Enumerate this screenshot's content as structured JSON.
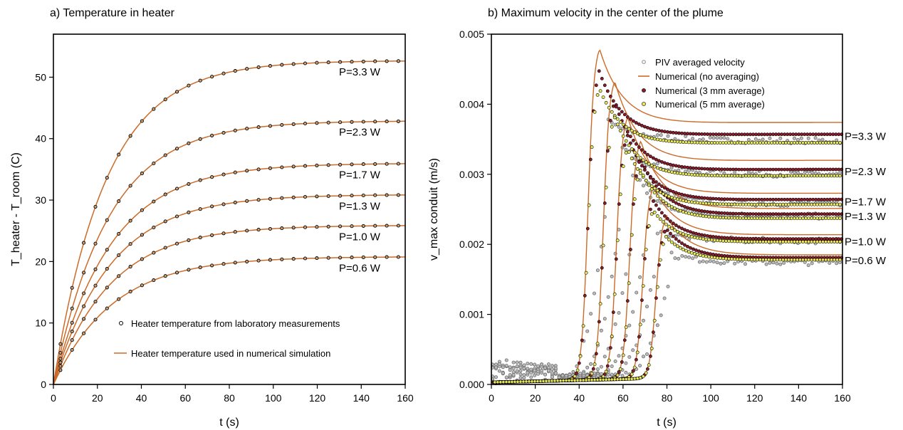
{
  "chart_data": [
    {
      "type": "line",
      "title": "a) Temperature in heater",
      "xlabel": "t (s)",
      "ylabel": "T_heater - T_room (C)",
      "xlim": [
        0,
        160
      ],
      "ylim": [
        0,
        57
      ],
      "x_ticks": [
        "0",
        "20",
        "40",
        "60",
        "80",
        "100",
        "120",
        "140",
        "160"
      ],
      "y_ticks": [
        "0",
        "10",
        "20",
        "30",
        "40",
        "50"
      ],
      "legend": {
        "placement": "bottom-right",
        "entries": [
          {
            "label": "Heater temperature from laboratory measurements",
            "marker": "open-circle"
          },
          {
            "label": "Heater temperature used in numerical simulation",
            "marker": "line",
            "color": "#cc6a28"
          }
        ]
      },
      "series": [
        {
          "label": "P=3.3 W",
          "asymptote": 52.7,
          "tau": 24,
          "curve_color": "#cc6a28"
        },
        {
          "label": "P=2.3 W",
          "asymptote": 42.9,
          "tau": 25,
          "curve_color": "#cc6a28"
        },
        {
          "label": "P=1.7 W",
          "asymptote": 36.0,
          "tau": 26,
          "curve_color": "#cc6a28"
        },
        {
          "label": "P=1.3 W",
          "asymptote": 30.9,
          "tau": 26,
          "curve_color": "#cc6a28"
        },
        {
          "label": "P=1.0 W",
          "asymptote": 25.9,
          "tau": 26,
          "curve_color": "#cc6a28"
        },
        {
          "label": "P=0.6 W",
          "asymptote": 20.8,
          "tau": 27,
          "curve_color": "#cc6a28"
        }
      ],
      "grid": false
    },
    {
      "type": "scatter",
      "title": "b) Maximum velocity in the center of the plume",
      "xlabel": "t (s)",
      "ylabel": "v_max conduit (m/s)",
      "xlim": [
        0,
        160
      ],
      "ylim": [
        0,
        0.005
      ],
      "x_ticks": [
        "0",
        "20",
        "40",
        "60",
        "80",
        "100",
        "120",
        "140",
        "160"
      ],
      "y_ticks": [
        "0.000",
        "0.001",
        "0.002",
        "0.003",
        "0.004",
        "0.005"
      ],
      "legend": {
        "placement": "top-right",
        "entries": [
          {
            "label": "PIV averaged velocity",
            "marker": "open-circle",
            "color": "#8a8a8a"
          },
          {
            "label": "Numerical (no averaging)",
            "marker": "line",
            "color": "#cc6a28"
          },
          {
            "label": "Numerical (3 mm average)",
            "marker": "filled-circle",
            "color": "#8b1a2b"
          },
          {
            "label": "Numerical (5 mm average)",
            "marker": "filled-circle",
            "color": "#e8e85a"
          }
        ]
      },
      "series": [
        {
          "label": "P=3.3 W",
          "onset": 47,
          "peak_t": 49,
          "peak": 0.00482,
          "settle": 0.00376,
          "avg3": 0.00359,
          "avg5": 0.00347,
          "piv": 0.00348
        },
        {
          "label": "P=2.3 W",
          "onset": 53,
          "peak_t": 56,
          "peak": 0.00435,
          "settle": 0.00322,
          "avg3": 0.00309,
          "avg5": 0.003,
          "piv": 0.003
        },
        {
          "label": "P=1.7 W",
          "onset": 58,
          "peak_t": 62,
          "peak": 0.00383,
          "settle": 0.00275,
          "avg3": 0.00266,
          "avg5": 0.00259,
          "piv": 0.00258
        },
        {
          "label": "P=1.3 W",
          "onset": 64,
          "peak_t": 68,
          "peak": 0.00348,
          "settle": 0.00253,
          "avg3": 0.00245,
          "avg5": 0.00239,
          "piv": 0.0024
        },
        {
          "label": "P=1.0 W",
          "onset": 69,
          "peak_t": 74,
          "peak": 0.00281,
          "settle": 0.00215,
          "avg3": 0.00209,
          "avg5": 0.00205,
          "piv": 0.00205
        },
        {
          "label": "P=0.6 W",
          "onset": 75,
          "peak_t": 80,
          "peak": 0.00238,
          "settle": 0.00186,
          "avg3": 0.00182,
          "avg5": 0.00179,
          "piv": 0.00174
        }
      ],
      "grid": false
    }
  ]
}
